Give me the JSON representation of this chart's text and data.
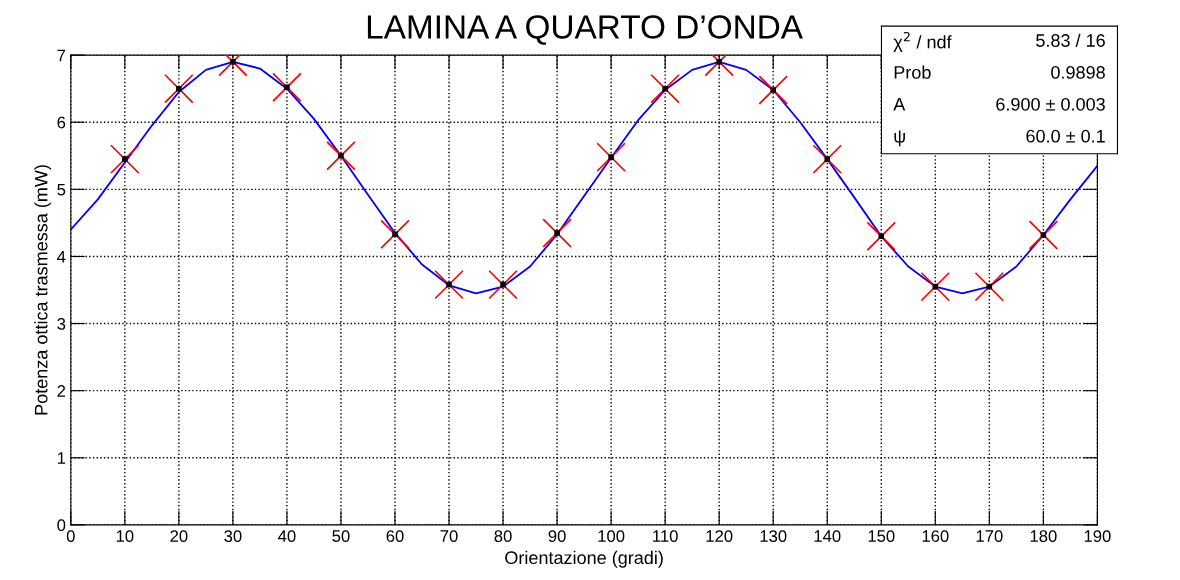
{
  "chart_data": {
    "type": "scatter",
    "title": "LAMINA A QUARTO D’ONDA",
    "xlabel": "Orientazione (gradi)",
    "ylabel": "Potenza ottica trasmessa (mW)",
    "xlim": [
      0,
      190
    ],
    "ylim": [
      0,
      7
    ],
    "xticks": [
      0,
      10,
      20,
      30,
      40,
      50,
      60,
      70,
      80,
      90,
      100,
      110,
      120,
      130,
      140,
      150,
      160,
      170,
      180,
      190
    ],
    "yticks": [
      0,
      1,
      2,
      3,
      4,
      5,
      6,
      7
    ],
    "grid": true,
    "series": [
      {
        "color": "#ff0000",
        "marker": "cross",
        "x": [
          10,
          20,
          30,
          40,
          50,
          60,
          70,
          80,
          90,
          100,
          110,
          120,
          130,
          140,
          150,
          160,
          170,
          180
        ],
        "values": [
          5.45,
          6.5,
          6.9,
          6.52,
          5.5,
          4.33,
          3.58,
          3.58,
          4.35,
          5.48,
          6.5,
          6.9,
          6.48,
          5.45,
          4.3,
          3.55,
          3.55,
          4.32
        ]
      },
      {
        "type": "line",
        "color": "#0000ff",
        "x": [
          0,
          5,
          10,
          15,
          20,
          25,
          30,
          35,
          40,
          45,
          50,
          55,
          60,
          65,
          70,
          75,
          80,
          85,
          90,
          95,
          100,
          105,
          110,
          115,
          120,
          125,
          130,
          135,
          140,
          145,
          150,
          155,
          160,
          165,
          170,
          175,
          180,
          185,
          190
        ],
        "values": [
          4.4,
          4.85,
          5.4,
          5.95,
          6.45,
          6.78,
          6.9,
          6.8,
          6.5,
          6.05,
          5.5,
          4.92,
          4.35,
          3.88,
          3.57,
          3.45,
          3.55,
          3.85,
          4.33,
          4.9,
          5.47,
          6.03,
          6.48,
          6.78,
          6.9,
          6.78,
          6.48,
          6.0,
          5.45,
          4.88,
          4.3,
          3.85,
          3.55,
          3.45,
          3.55,
          3.85,
          4.32,
          4.85,
          5.35
        ]
      }
    ],
    "annotations": [
      "χ$^{2}$ / ndf",
      "5.83 / 16",
      "Prob",
      "0.9898",
      "A",
      "6.900 ± 0.003",
      "ψ",
      "60.0 ± 0.1"
    ]
  }
}
